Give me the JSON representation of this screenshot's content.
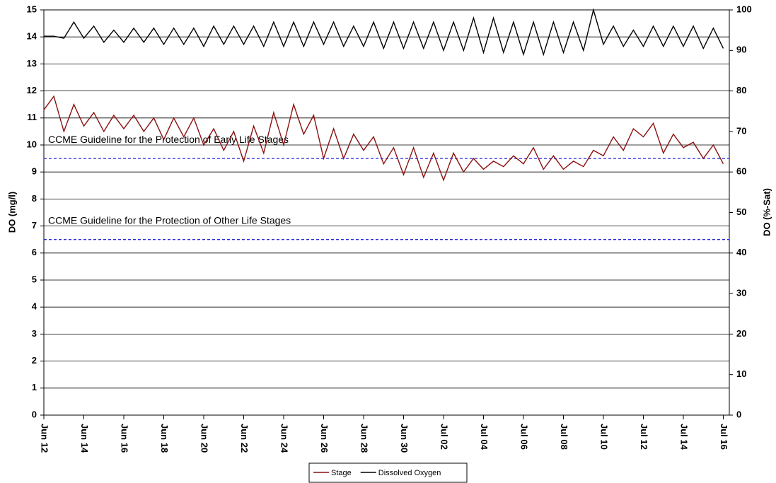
{
  "chart_data": {
    "type": "line",
    "ylabel": "DO (mg/l)",
    "y2label": "DO (%-Sat)",
    "xlim": [
      0,
      34.3
    ],
    "xticks": [
      {
        "value": 0,
        "label": "Jun 12"
      },
      {
        "value": 2,
        "label": "Jun 14"
      },
      {
        "value": 4,
        "label": "Jun 16"
      },
      {
        "value": 6,
        "label": "Jun 18"
      },
      {
        "value": 8,
        "label": "Jun 20"
      },
      {
        "value": 10,
        "label": "Jun 22"
      },
      {
        "value": 12,
        "label": "Jun 24"
      },
      {
        "value": 14,
        "label": "Jun 26"
      },
      {
        "value": 16,
        "label": "Jun 28"
      },
      {
        "value": 18,
        "label": "Jun 30"
      },
      {
        "value": 20,
        "label": "Jul 02"
      },
      {
        "value": 22,
        "label": "Jul 04"
      },
      {
        "value": 24,
        "label": "Jul 06"
      },
      {
        "value": 26,
        "label": "Jul 08"
      },
      {
        "value": 28,
        "label": "Jul 10"
      },
      {
        "value": 30,
        "label": "Jul 12"
      },
      {
        "value": 32,
        "label": "Jul 14"
      },
      {
        "value": 34,
        "label": "Jul 16"
      }
    ],
    "ylim": [
      0,
      15
    ],
    "yticks": [
      0,
      1,
      2,
      3,
      4,
      5,
      6,
      7,
      8,
      9,
      10,
      11,
      12,
      13,
      14,
      15
    ],
    "y2lim": [
      0,
      100
    ],
    "y2ticks": [
      0,
      10,
      20,
      30,
      40,
      50,
      60,
      70,
      80,
      90,
      100
    ],
    "grid": true,
    "legend": "bottom",
    "guidelines": [
      {
        "value": 9.5,
        "label": "CCME Guideline for the Protection of Early Life Stages",
        "color": "#2a2ad8"
      },
      {
        "value": 6.5,
        "label": "CCME Guideline for the Protection of Other Life Stages",
        "color": "#2a2ad8"
      }
    ],
    "x": [
      0,
      0.5,
      1,
      1.5,
      2,
      2.5,
      3,
      3.5,
      4,
      4.5,
      5,
      5.5,
      6,
      6.5,
      7,
      7.5,
      8,
      8.5,
      9,
      9.5,
      10,
      10.5,
      11,
      11.5,
      12,
      12.5,
      13,
      13.5,
      14,
      14.5,
      15,
      15.5,
      16,
      16.5,
      17,
      17.5,
      18,
      18.5,
      19,
      19.5,
      20,
      20.5,
      21,
      21.5,
      22,
      22.5,
      23,
      23.5,
      24,
      24.5,
      25,
      25.5,
      26,
      26.5,
      27,
      27.5,
      28,
      28.5,
      29,
      29.5,
      30,
      30.5,
      31,
      31.5,
      32,
      32.5,
      33,
      33.5,
      34
    ],
    "series": [
      {
        "name": "Stage",
        "color": "#8b1010",
        "values": [
          11.3,
          11.8,
          10.5,
          11.5,
          10.7,
          11.2,
          10.5,
          11.1,
          10.6,
          11.1,
          10.5,
          11.0,
          10.2,
          11.0,
          10.3,
          11.0,
          10.0,
          10.6,
          9.8,
          10.5,
          9.4,
          10.7,
          9.7,
          11.2,
          10.0,
          11.5,
          10.4,
          11.1,
          9.5,
          10.6,
          9.5,
          10.4,
          9.8,
          10.3,
          9.3,
          9.9,
          8.9,
          9.9,
          8.8,
          9.7,
          8.7,
          9.7,
          9.0,
          9.5,
          9.1,
          9.4,
          9.2,
          9.6,
          9.3,
          9.9,
          9.1,
          9.6,
          9.1,
          9.4,
          9.2,
          9.8,
          9.6,
          10.3,
          9.8,
          10.6,
          10.3,
          10.8,
          9.7,
          10.4,
          9.9,
          10.1,
          9.5,
          10.0,
          9.3
        ]
      },
      {
        "name": "Dissolved Oxygen",
        "color": "#000000",
        "axis": "y2",
        "values": [
          93.5,
          93.5,
          93,
          97,
          93,
          96,
          92,
          95,
          92,
          95.5,
          92,
          95.5,
          91.5,
          95.5,
          91.5,
          95.5,
          91,
          96,
          91.5,
          96,
          91.5,
          96,
          91,
          97,
          91,
          97,
          91,
          97,
          91.5,
          97,
          91,
          96,
          91,
          97,
          90.5,
          97,
          90.5,
          97,
          90.5,
          97,
          90,
          97,
          90,
          98,
          89.5,
          98,
          89.5,
          97,
          89,
          97,
          89,
          97,
          89.5,
          97,
          90,
          100,
          91.5,
          96,
          91,
          95,
          91,
          96,
          91,
          96,
          91,
          96,
          90.5,
          95.5,
          90.5
        ]
      }
    ]
  }
}
